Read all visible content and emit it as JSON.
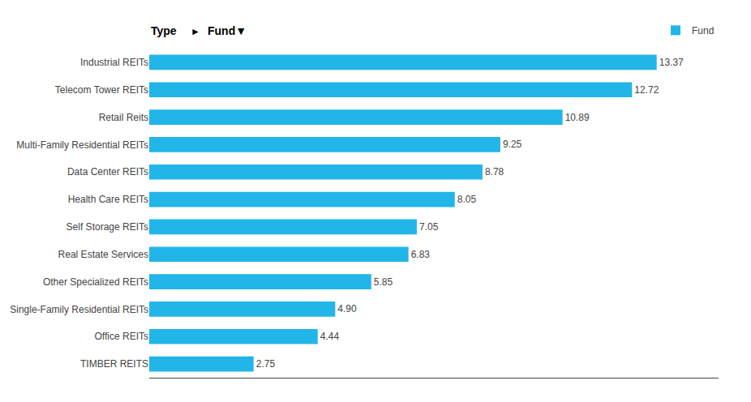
{
  "chart_data": {
    "type": "bar",
    "orientation": "horizontal",
    "categories": [
      "Industrial REITs",
      "Telecom Tower REITs",
      "Retail Reits",
      "Multi-Family Residential REITs",
      "Data Center REITs",
      "Health Care REITs",
      "Self Storage REITs",
      "Real Estate Services",
      "Other Specialized REITs",
      "Single-Family Residential REITs",
      "Office REITs",
      "TIMBER REITS"
    ],
    "series": [
      {
        "name": "Fund",
        "color": "#22b5e8",
        "values": [
          13.37,
          12.72,
          10.89,
          9.25,
          8.78,
          8.05,
          7.05,
          6.83,
          5.85,
          4.9,
          4.44,
          2.75
        ],
        "value_labels": [
          "13.37",
          "12.72",
          "10.89",
          "9.25",
          "8.78",
          "8.05",
          "7.05",
          "6.83",
          "5.85",
          "4.90",
          "4.44",
          "2.75"
        ]
      }
    ],
    "annotations": [
      "Type",
      "►",
      "Fund▼"
    ],
    "xlim": [
      0,
      15
    ],
    "tick_labels": "y",
    "data_labels": true,
    "grid": false,
    "legend": "upper right"
  }
}
